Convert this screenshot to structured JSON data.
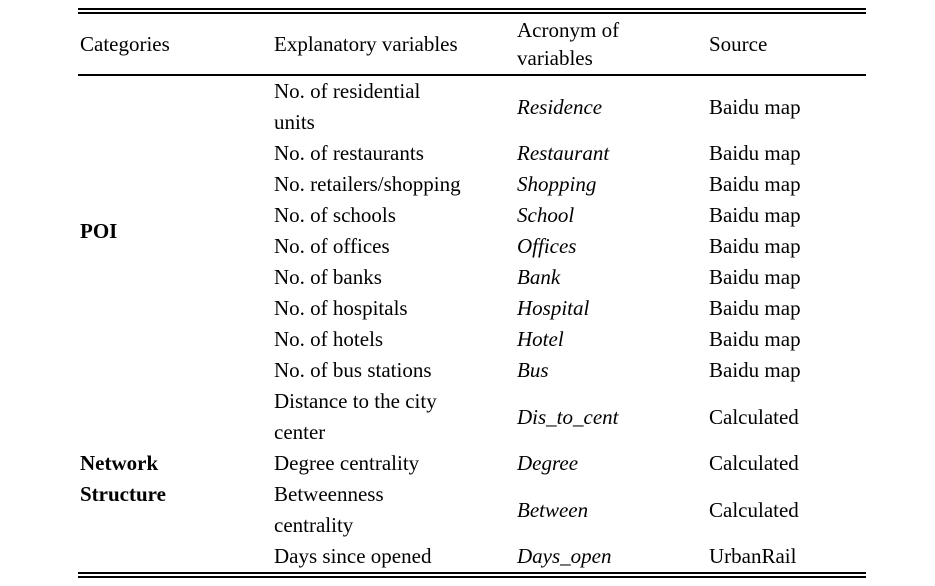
{
  "table": {
    "headers": {
      "categories": "Categories",
      "explanatory": "Explanatory variables",
      "acronym": "Acronym of\nvariables",
      "source": "Source"
    },
    "groups": [
      {
        "category": "POI",
        "rowspan": 9
      },
      {
        "category": "Network\nStructure",
        "rowspan": 4
      }
    ],
    "rows": [
      {
        "explanatory": "No. of residential\nunits",
        "acronym": "Residence",
        "source": "Baidu map"
      },
      {
        "explanatory": "No. of restaurants",
        "acronym": "Restaurant",
        "source": "Baidu map"
      },
      {
        "explanatory": "No. retailers/shopping",
        "acronym": "Shopping",
        "source": "Baidu map"
      },
      {
        "explanatory": "No. of schools",
        "acronym": "School",
        "source": "Baidu map"
      },
      {
        "explanatory": "No. of offices",
        "acronym": "Offices",
        "source": "Baidu map"
      },
      {
        "explanatory": "No. of banks",
        "acronym": "Bank",
        "source": "Baidu map"
      },
      {
        "explanatory": "No. of hospitals",
        "acronym": "Hospital",
        "source": "Baidu map"
      },
      {
        "explanatory": "No. of hotels",
        "acronym": "Hotel",
        "source": "Baidu map"
      },
      {
        "explanatory": "No. of bus stations",
        "acronym": "Bus",
        "source": "Baidu map"
      },
      {
        "explanatory": "Distance to the city\ncenter",
        "acronym": "Dis_to_cent",
        "source": "Calculated"
      },
      {
        "explanatory": "Degree centrality",
        "acronym": "Degree",
        "source": "Calculated"
      },
      {
        "explanatory": "Betweenness\ncentrality",
        "acronym": "Between",
        "source": "Calculated"
      },
      {
        "explanatory": "Days since opened",
        "acronym": "Days_open",
        "source": "UrbanRail"
      }
    ]
  }
}
